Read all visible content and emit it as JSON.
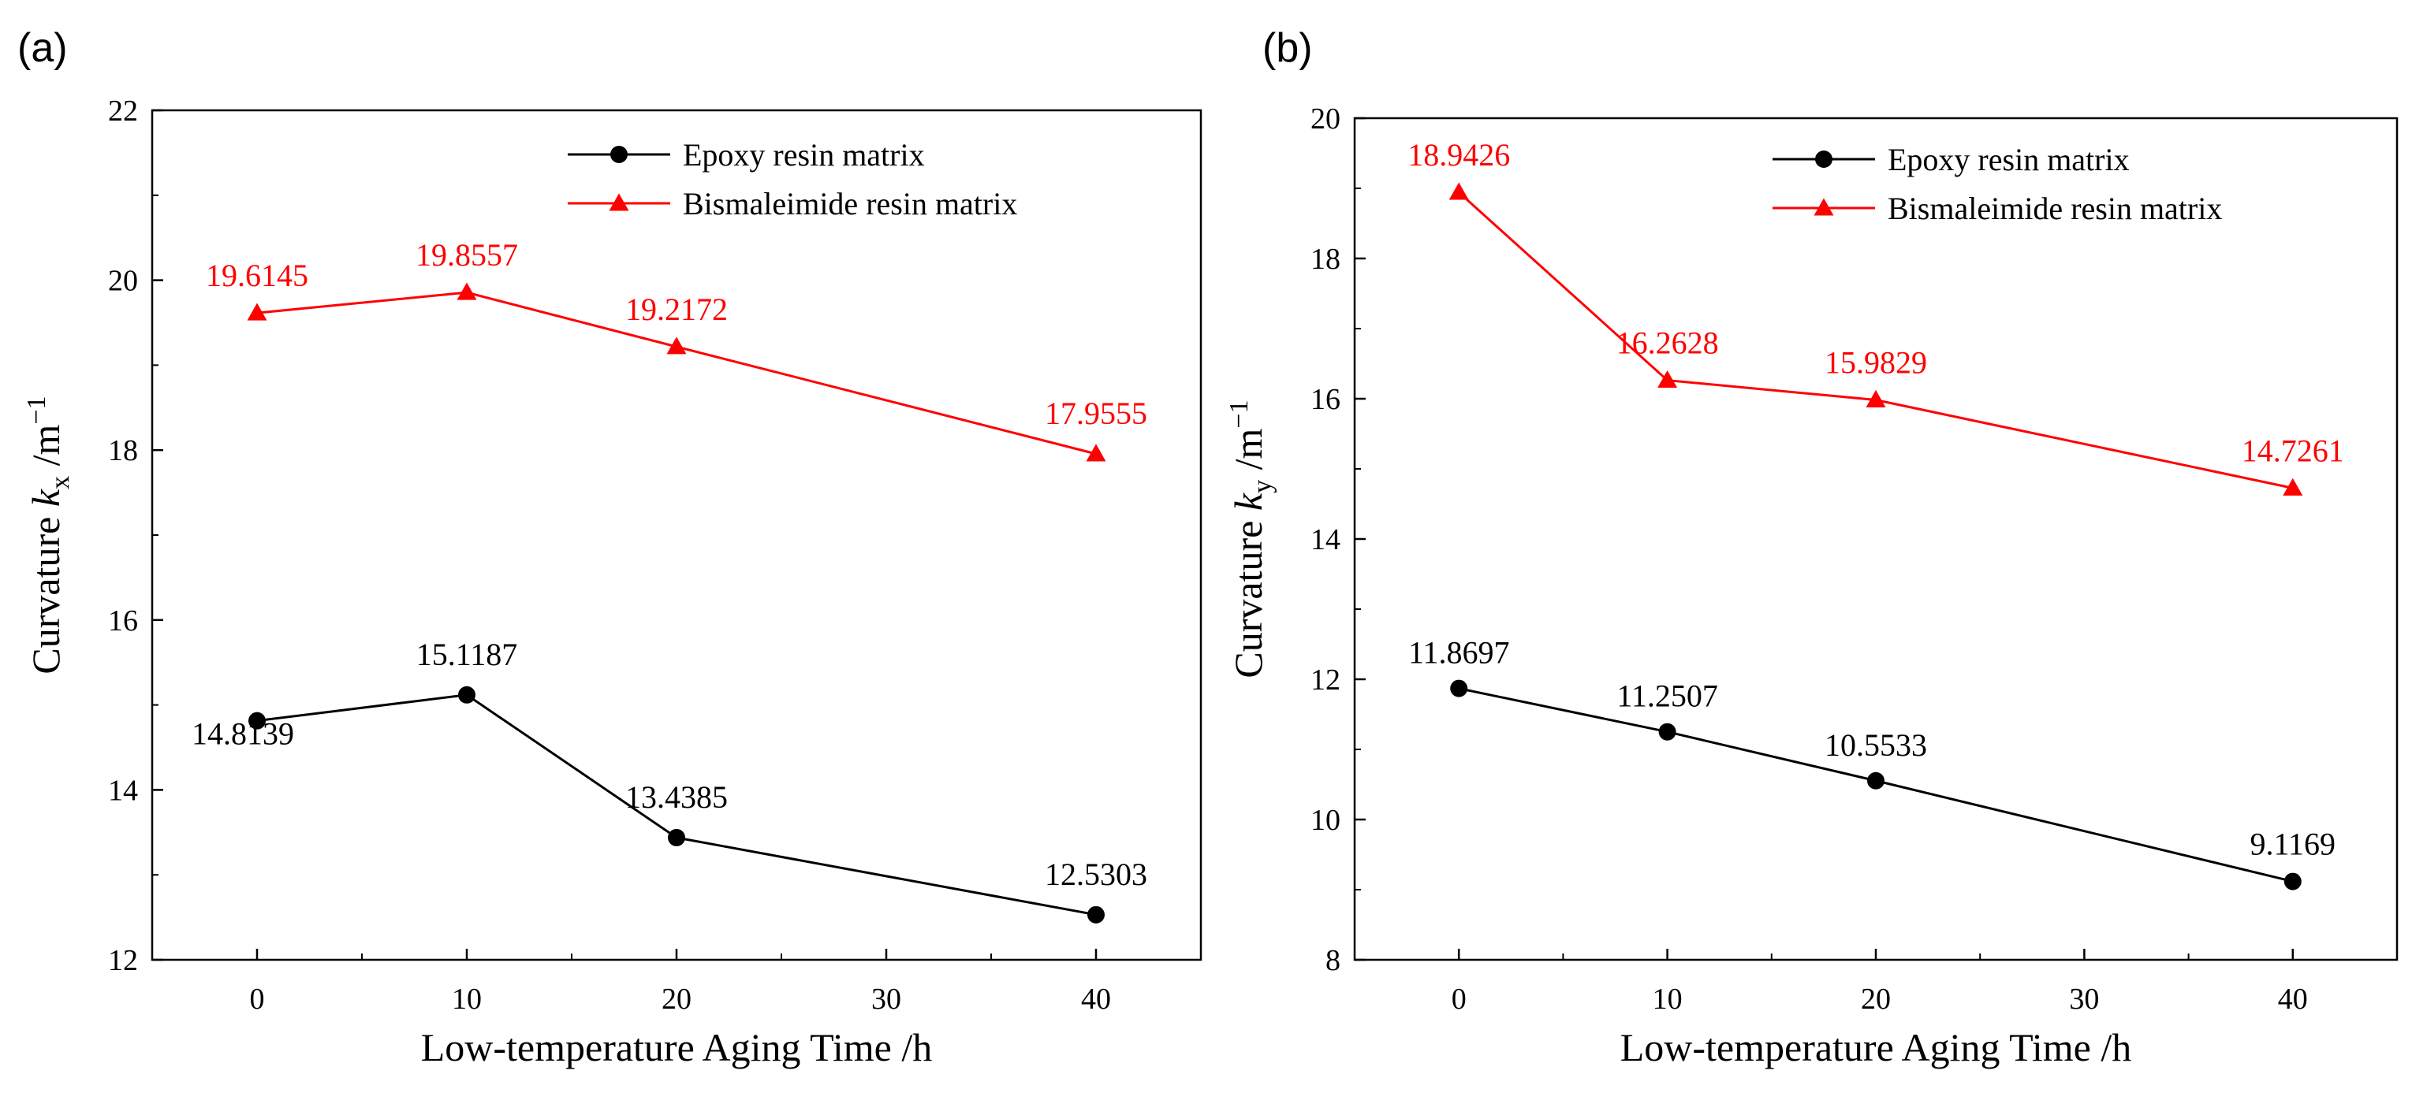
{
  "figure": {
    "panels": [
      "(a)",
      "(b)"
    ]
  },
  "chart_data": [
    {
      "type": "line",
      "panel_label": "(a)",
      "title": "",
      "xlabel": "Low-temperature Aging Time /h",
      "ylabel_prefix": "Curvature ",
      "ylabel_symbol": "k",
      "ylabel_subscript": "x",
      "ylabel_suffix": " /m",
      "ylabel_exponent": "−1",
      "xlim": [
        -5,
        45
      ],
      "ylim": [
        12,
        22
      ],
      "xticks": [
        0,
        10,
        20,
        30,
        40
      ],
      "yticks": [
        12,
        14,
        16,
        18,
        20,
        22
      ],
      "grid": false,
      "legend_position": "top-right",
      "series": [
        {
          "name": "Epoxy resin matrix",
          "color": "#000000",
          "marker": "circle",
          "x": [
            0,
            10,
            20,
            40
          ],
          "values": [
            14.8139,
            15.1187,
            13.4385,
            12.5303
          ],
          "labels": [
            "14.8139",
            "15.1187",
            "13.4385",
            "12.5303"
          ]
        },
        {
          "name": "Bismaleimide resin matrix",
          "color": "#ff0000",
          "marker": "triangle",
          "x": [
            0,
            10,
            20,
            40
          ],
          "values": [
            19.6145,
            19.8557,
            19.2172,
            17.9555
          ],
          "labels": [
            "19.6145",
            "19.8557",
            "19.2172",
            "17.9555"
          ]
        }
      ]
    },
    {
      "type": "line",
      "panel_label": "(b)",
      "title": "",
      "xlabel": "Low-temperature Aging Time /h",
      "ylabel_prefix": "Curvature ",
      "ylabel_symbol": "k",
      "ylabel_subscript": "y",
      "ylabel_suffix": " /m",
      "ylabel_exponent": "−1",
      "xlim": [
        -5,
        45
      ],
      "ylim": [
        8,
        20
      ],
      "xticks": [
        0,
        10,
        20,
        30,
        40
      ],
      "yticks": [
        8,
        10,
        12,
        14,
        16,
        18,
        20
      ],
      "grid": false,
      "legend_position": "top-right",
      "series": [
        {
          "name": "Epoxy resin matrix",
          "color": "#000000",
          "marker": "circle",
          "x": [
            0,
            10,
            20,
            40
          ],
          "values": [
            11.8697,
            11.2507,
            10.5533,
            9.1169
          ],
          "labels": [
            "11.8697",
            "11.2507",
            "10.5533",
            "9.1169"
          ]
        },
        {
          "name": "Bismaleimide resin matrix",
          "color": "#ff0000",
          "marker": "triangle",
          "x": [
            0,
            10,
            20,
            40
          ],
          "values": [
            18.9426,
            16.2628,
            15.9829,
            14.7261
          ],
          "labels": [
            "18.9426",
            "16.2628",
            "15.9829",
            "14.7261"
          ]
        }
      ]
    }
  ]
}
